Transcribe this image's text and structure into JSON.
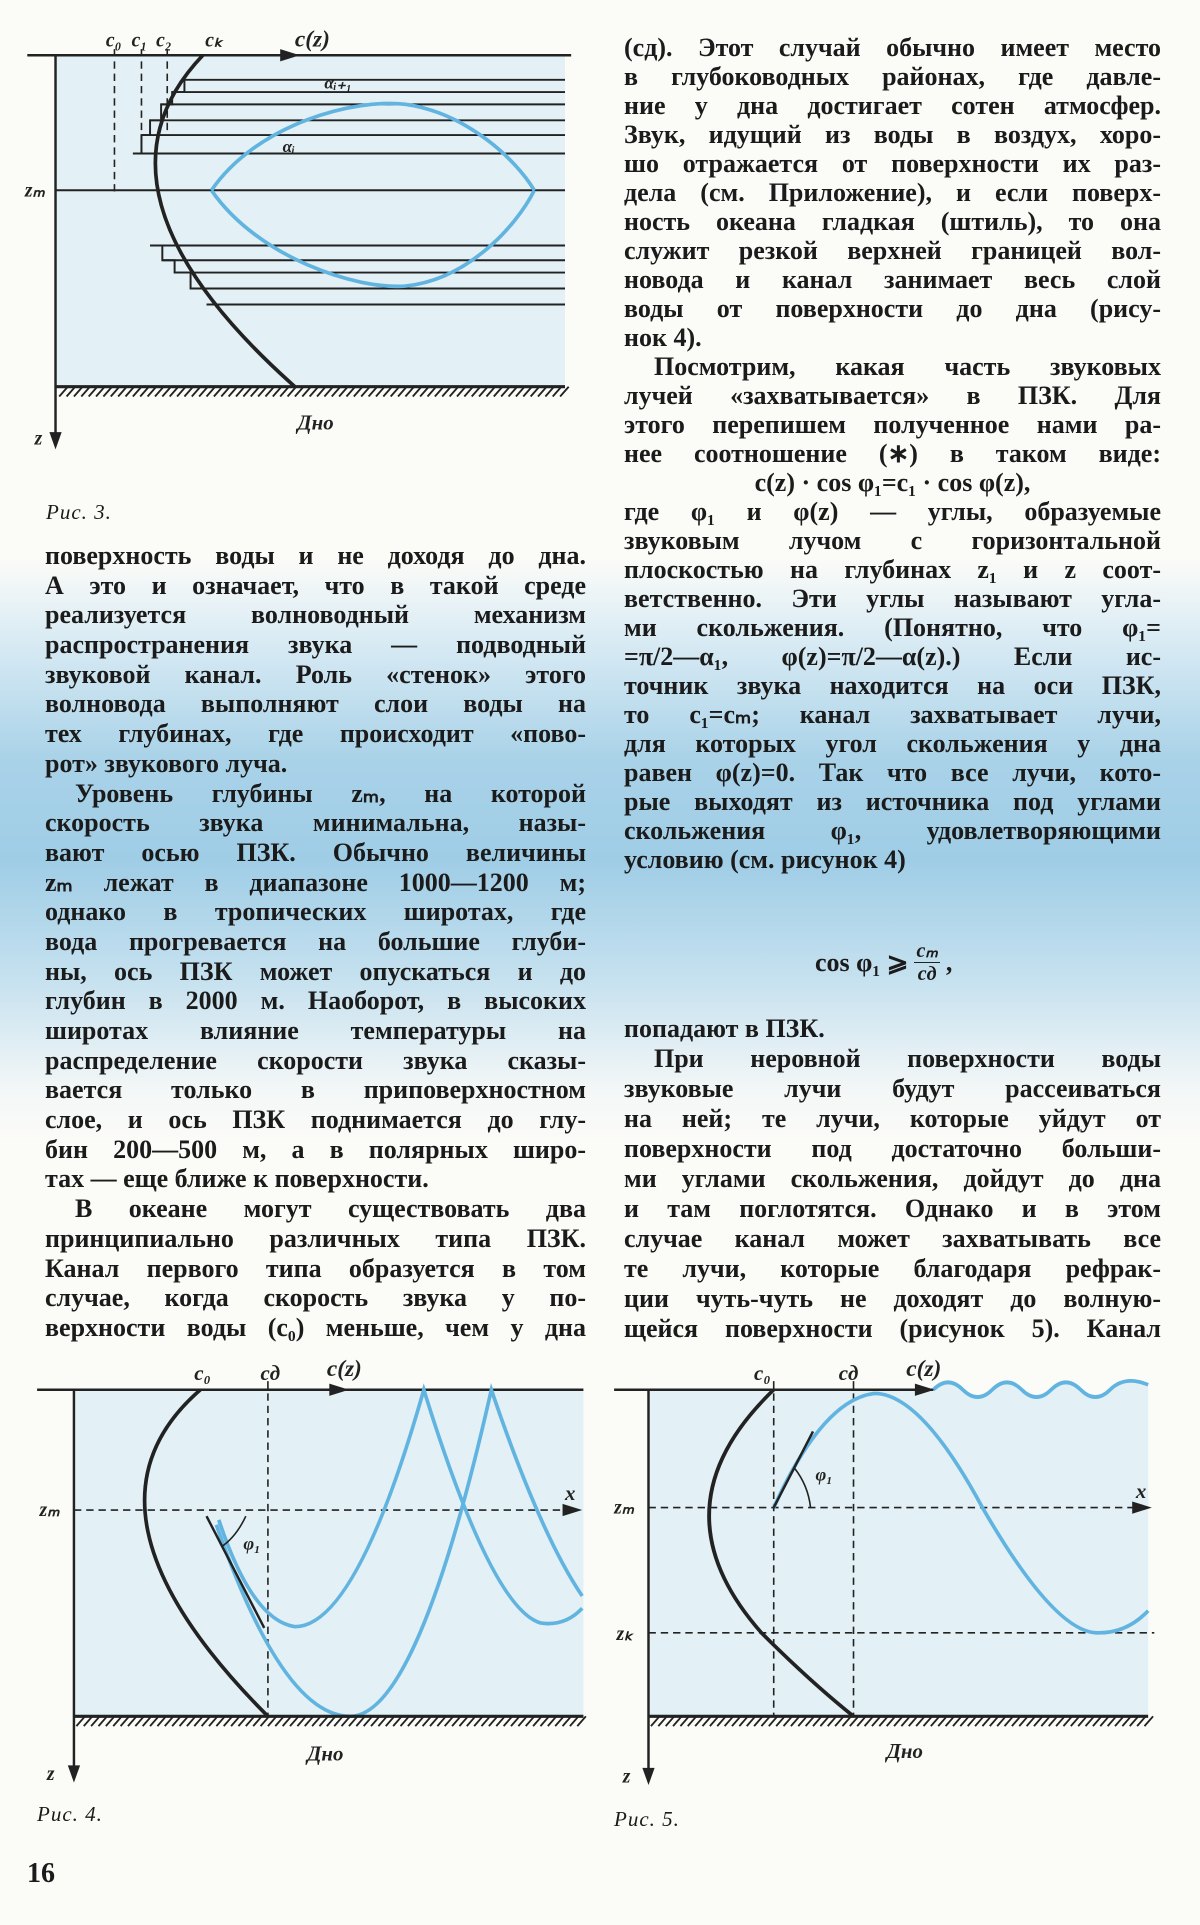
{
  "left_column": {
    "lines": [
      "поверхность воды и не доходя до дна.",
      "А это и означает, что в такой среде",
      "реализуется волноводный механизм",
      "распространения звука — подводный",
      "звуковой канал. Роль «стенок» этого",
      "волновода выполняют слои воды на",
      "тех глубинах, где происходит «пово-",
      "рот» звукового луча.",
      "Уровень глубины zₘ, на которой",
      "скорость звука минимальна, назы-",
      "вают осью ПЗК. Обычно величины",
      "zₘ лежат в диапазоне 1000—1200 м;",
      "однако в тропических широтах, где",
      "вода прогревается на большие глуби-",
      "ны, ось ПЗК может опускаться и до",
      "глубин в 2000 м. Наоборот, в высоких",
      "широтах  влияние температуры на",
      "распределение скорости звука сказы-",
      "вается только в приповерхностном",
      "слое, и ось ПЗК поднимается до глу-",
      "бин 200—500 м, а в полярных широ-",
      "тах — еще ближе к поверхности.",
      "В океане могут существовать два",
      "принципиально различных типа ПЗК.",
      "Канал первого типа образуется в том",
      "случае, когда скорость звука у по-",
      "верхности воды (c₀) меньше, чем у дна"
    ],
    "indent_lines": [
      8,
      22
    ],
    "last_lines": [
      7,
      21
    ]
  },
  "right_column": {
    "upper_lines": [
      "(cд). Этот случай обычно имеет место",
      "в глубоководных районах, где давле-",
      "ние у дна достигает сотен атмосфер.",
      "Звук, идущий из воды в воздух, хоро-",
      "шо отражается от поверхности их раз-",
      "дела (см. Приложение), и если поверх-",
      "ность океана гладкая (штиль), то она",
      "служит резкой верхней границей вол-",
      "новода и канал занимает весь слой",
      "воды от поверхности до дна (рису-",
      "нок 4).",
      "Посмотрим, какая часть звуковых",
      "лучей «захватывается» в ПЗК. Для",
      "этого перепишем полученное нами ра-",
      "нее соотношение (∗) в таком виде:",
      "c(z) · cos φ₁=c₁ · cos φ(z),",
      "где φ₁ и φ(z) — углы, образуемые",
      "звуковым лучом с горизонтальной",
      "плоскостью на глубинах z₁ и z соот-",
      "ветственно. Эти углы называют угла-",
      "ми скольжения. (Понятно, что φ₁=",
      "=π/2—α₁, φ(z)=π/2—α(z).) Если ис-",
      "точник звука находится на оси ПЗК,",
      "то c₁=cₘ; канал захватывает лучи,",
      "для которых угол скольжения у дна",
      "равен φ(z)=0. Так что все лучи, кото-",
      "рые выходят из источника под углами",
      "скольжения  φ₁,  удовлетворяющими",
      "условию (см. рисунок 4)"
    ],
    "indent_lines": [
      11
    ],
    "center_lines": [
      15
    ],
    "last_lines": [
      10,
      28
    ],
    "formula": {
      "lhs": "cos φ₁ ⩾",
      "numerator": "cₘ",
      "denominator": "cд",
      "trail": ","
    },
    "lower_lines": [
      "попадают в ПЗК.",
      "При неровной  поверхности воды",
      "звуковые лучи будут рассеиваться",
      "на ней; те лучи, которые уйдут от",
      "поверхности под достаточно больши-",
      "ми углами скольжения, дойдут до дна",
      "и там поглотятся.  Однако и в этом",
      "случае канал может захватывать все",
      "те лучи, которые благодаря рефрак-",
      "ции чуть-чуть  не доходят до волную-",
      "щейся поверхности (рисунок 5). Канал"
    ],
    "lower_indent_lines": [
      1
    ],
    "lower_last_lines": [
      0
    ]
  },
  "figure3": {
    "caption": "Рис. 3.",
    "labels": {
      "c0": "c₀",
      "c1": "c₁",
      "c2": "c₂",
      "ck": "cₖ",
      "cz": "c(z)",
      "ai1": "αᵢ₊₁",
      "ai": "αᵢ",
      "zm": "zₘ",
      "z": "z",
      "bottom": "Дно"
    }
  },
  "figure4": {
    "caption": "Рис. 4.",
    "labels": {
      "c0": "c₀",
      "cd": "cд",
      "cz": "c(z)",
      "zm": "zₘ",
      "x": "x",
      "phi": "φ₁",
      "z": "z",
      "bottom": "Дно"
    }
  },
  "figure5": {
    "caption": "Рис. 5.",
    "labels": {
      "c0": "c₀",
      "cd": "cд",
      "cz": "c(z)",
      "zm": "zₘ",
      "zk": "zₖ",
      "x": "x",
      "phi": "φ₁",
      "z": "z",
      "bottom": "Дно"
    }
  },
  "page_number": "16",
  "colors": {
    "ray": "#62b4e0",
    "water": "#e3f0f5",
    "ink": "#1b1b1b"
  }
}
